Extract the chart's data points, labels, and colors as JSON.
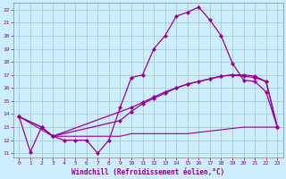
{
  "xlabel": "Windchill (Refroidissement éolien,°C)",
  "background_color": "#cceeff",
  "grid_color": "#aacccc",
  "line_color": "#990099",
  "xlim": [
    -0.5,
    23.5
  ],
  "ylim": [
    10.7,
    22.5
  ],
  "yticks": [
    11,
    12,
    13,
    14,
    15,
    16,
    17,
    18,
    19,
    20,
    21,
    22
  ],
  "xticks": [
    0,
    1,
    2,
    3,
    4,
    5,
    6,
    7,
    8,
    9,
    10,
    11,
    12,
    13,
    14,
    15,
    16,
    17,
    18,
    19,
    20,
    21,
    22,
    23
  ],
  "line1_x": [
    0,
    1,
    2,
    3,
    4,
    5,
    6,
    7,
    8,
    9,
    10,
    11,
    12,
    13,
    14,
    15,
    16,
    17,
    18,
    19,
    20,
    21,
    22,
    23
  ],
  "line1_y": [
    13.8,
    11.1,
    13.0,
    12.3,
    12.0,
    12.0,
    12.0,
    11.0,
    12.0,
    14.5,
    16.8,
    17.0,
    19.0,
    20.0,
    21.5,
    21.8,
    22.2,
    21.2,
    20.0,
    17.9,
    16.6,
    16.5,
    15.7,
    13.0
  ],
  "line2_x": [
    0,
    2,
    3,
    10,
    11,
    12,
    13,
    14,
    15,
    16,
    17,
    18,
    19,
    20,
    21,
    22,
    23
  ],
  "line2_y": [
    13.8,
    13.0,
    12.3,
    14.5,
    14.9,
    15.3,
    15.7,
    16.0,
    16.3,
    16.5,
    16.7,
    16.9,
    17.0,
    17.0,
    16.9,
    16.5,
    13.0
  ],
  "line3_x": [
    0,
    2,
    3,
    9,
    10,
    11,
    12,
    13,
    14,
    15,
    16,
    17,
    18,
    19,
    20,
    21,
    22,
    23
  ],
  "line3_y": [
    13.8,
    13.0,
    12.3,
    13.5,
    14.2,
    14.8,
    15.2,
    15.6,
    16.0,
    16.3,
    16.5,
    16.7,
    16.9,
    17.0,
    16.9,
    16.8,
    16.5,
    13.0
  ],
  "line4_x": [
    0,
    3,
    8,
    9,
    10,
    11,
    12,
    13,
    14,
    15,
    16,
    17,
    18,
    19,
    20,
    21,
    22,
    23
  ],
  "line4_y": [
    13.8,
    12.3,
    12.3,
    12.3,
    12.5,
    12.5,
    12.5,
    12.5,
    12.5,
    12.5,
    12.6,
    12.7,
    12.8,
    12.9,
    13.0,
    13.0,
    13.0,
    13.0
  ]
}
